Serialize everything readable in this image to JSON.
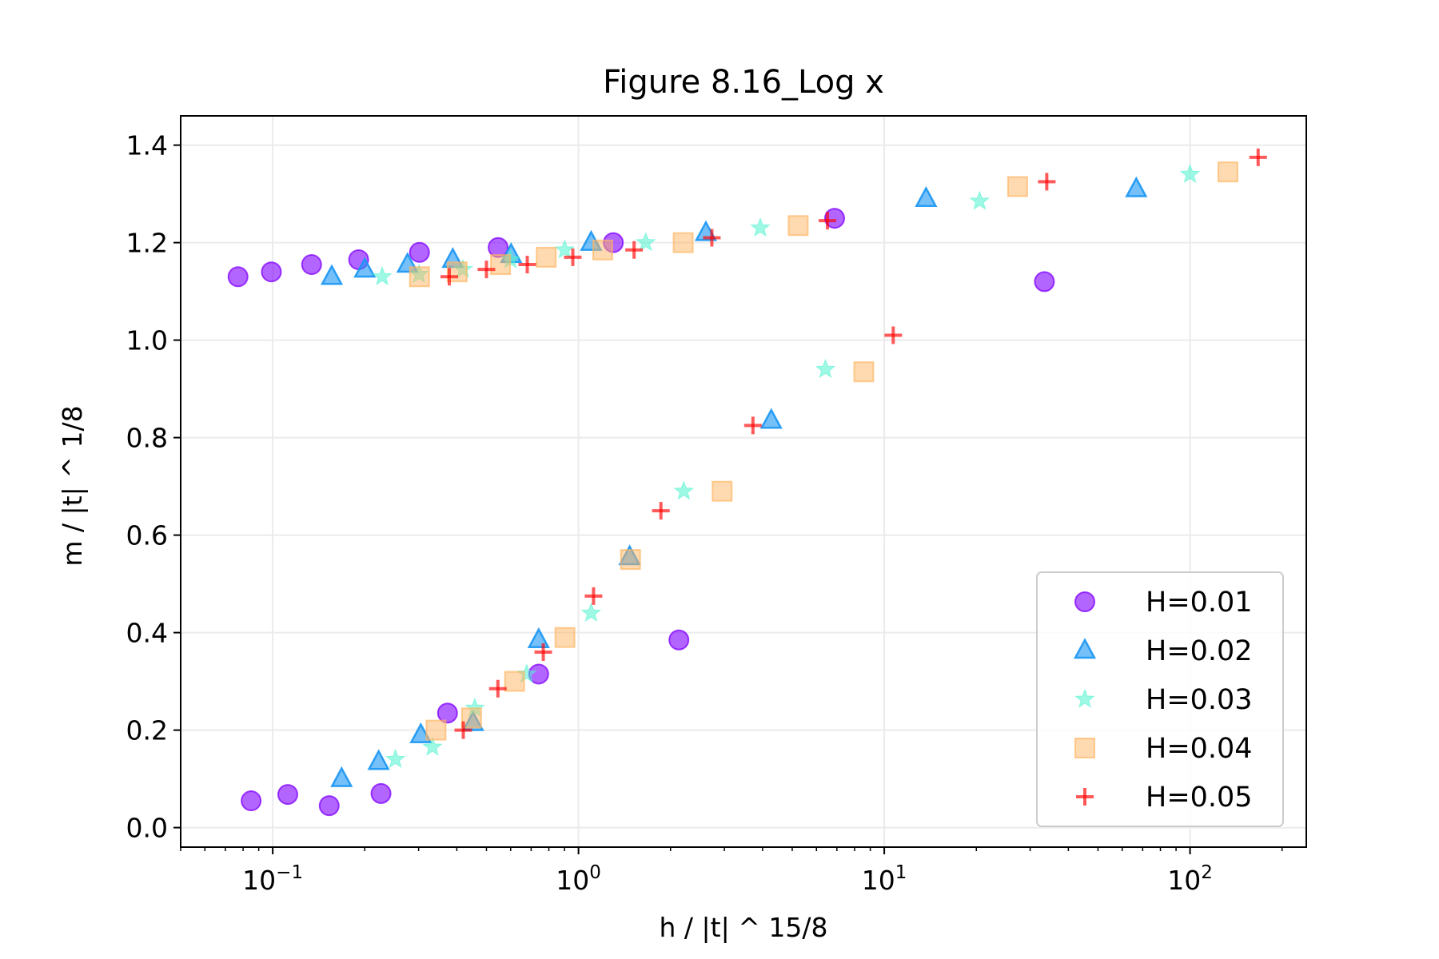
{
  "chart_data": {
    "type": "scatter",
    "title": "Figure 8.16_Log x",
    "xlabel": "h / |t| ^ 15/8",
    "ylabel": "m / |t| ^ 1/8",
    "xscale": "log",
    "xlim": [
      0.05,
      240
    ],
    "ylim": [
      -0.04,
      1.46
    ],
    "xticks": [
      {
        "value": 0.1,
        "base": "10",
        "exp": "−1"
      },
      {
        "value": 1,
        "base": "10",
        "exp": "0"
      },
      {
        "value": 10,
        "base": "10",
        "exp": "1"
      },
      {
        "value": 100,
        "base": "10",
        "exp": "2"
      }
    ],
    "yticks": [
      {
        "value": 0.0,
        "label": "0.0"
      },
      {
        "value": 0.2,
        "label": "0.2"
      },
      {
        "value": 0.4,
        "label": "0.4"
      },
      {
        "value": 0.6,
        "label": "0.6"
      },
      {
        "value": 0.8,
        "label": "0.8"
      },
      {
        "value": 1.0,
        "label": "1.0"
      },
      {
        "value": 1.2,
        "label": "1.2"
      },
      {
        "value": 1.4,
        "label": "1.4"
      }
    ],
    "grid": true,
    "legend_position": "lower-right",
    "series": [
      {
        "name": "H=0.01",
        "marker": "circle",
        "color": "#8000ff",
        "points": [
          [
            0.077,
            1.13
          ],
          [
            0.099,
            1.14
          ],
          [
            0.134,
            1.155
          ],
          [
            0.191,
            1.165
          ],
          [
            0.302,
            1.18
          ],
          [
            0.546,
            1.19
          ],
          [
            1.3,
            1.2
          ],
          [
            6.88,
            1.25
          ],
          [
            33.4,
            1.12
          ],
          [
            0.085,
            0.055
          ],
          [
            0.112,
            0.068
          ],
          [
            0.153,
            0.045
          ],
          [
            0.226,
            0.07
          ],
          [
            0.373,
            0.235
          ],
          [
            0.741,
            0.315
          ],
          [
            2.13,
            0.385
          ]
        ]
      },
      {
        "name": "H=0.02",
        "marker": "triangle",
        "color": "#1996f3",
        "points": [
          [
            0.156,
            1.13
          ],
          [
            0.2,
            1.145
          ],
          [
            0.276,
            1.155
          ],
          [
            0.388,
            1.165
          ],
          [
            0.602,
            1.175
          ],
          [
            1.1,
            1.2
          ],
          [
            2.61,
            1.22
          ],
          [
            13.7,
            1.29
          ],
          [
            66.7,
            1.31
          ],
          [
            0.168,
            0.1
          ],
          [
            0.222,
            0.135
          ],
          [
            0.305,
            0.19
          ],
          [
            0.452,
            0.215
          ],
          [
            0.741,
            0.385
          ],
          [
            1.47,
            0.555
          ],
          [
            4.27,
            0.835
          ]
        ]
      },
      {
        "name": "H=0.03",
        "marker": "star",
        "color": "#4df3ce",
        "points": [
          [
            0.228,
            1.13
          ],
          [
            0.301,
            1.135
          ],
          [
            0.419,
            1.145
          ],
          [
            0.599,
            1.165
          ],
          [
            0.901,
            1.185
          ],
          [
            1.66,
            1.2
          ],
          [
            3.93,
            1.23
          ],
          [
            20.5,
            1.285
          ],
          [
            100.0,
            1.34
          ],
          [
            0.252,
            0.14
          ],
          [
            0.333,
            0.165
          ],
          [
            0.458,
            0.245
          ],
          [
            0.677,
            0.315
          ],
          [
            1.1,
            0.44
          ],
          [
            2.21,
            0.69
          ],
          [
            6.42,
            0.94
          ]
        ]
      },
      {
        "name": "H=0.04",
        "marker": "square",
        "color": "#ffb360",
        "points": [
          [
            0.302,
            1.13
          ],
          [
            0.401,
            1.14
          ],
          [
            0.556,
            1.155
          ],
          [
            0.784,
            1.17
          ],
          [
            1.2,
            1.185
          ],
          [
            2.2,
            1.2
          ],
          [
            5.23,
            1.235
          ],
          [
            27.3,
            1.315
          ],
          [
            133.0,
            1.345
          ],
          [
            0.342,
            0.2
          ],
          [
            0.447,
            0.225
          ],
          [
            0.618,
            0.3
          ],
          [
            0.903,
            0.39
          ],
          [
            1.48,
            0.55
          ],
          [
            2.95,
            0.69
          ],
          [
            8.57,
            0.935
          ]
        ]
      },
      {
        "name": "H=0.05",
        "marker": "plus",
        "color": "#ff0000",
        "points": [
          [
            0.378,
            1.13
          ],
          [
            0.5,
            1.145
          ],
          [
            0.68,
            1.155
          ],
          [
            0.958,
            1.17
          ],
          [
            1.52,
            1.185
          ],
          [
            2.73,
            1.21
          ],
          [
            6.52,
            1.245
          ],
          [
            34.0,
            1.325
          ],
          [
            167.0,
            1.375
          ],
          [
            0.42,
            0.2
          ],
          [
            0.545,
            0.285
          ],
          [
            0.767,
            0.36
          ],
          [
            1.12,
            0.475
          ],
          [
            1.86,
            0.65
          ],
          [
            3.72,
            0.825
          ],
          [
            10.7,
            1.01
          ]
        ]
      }
    ]
  }
}
